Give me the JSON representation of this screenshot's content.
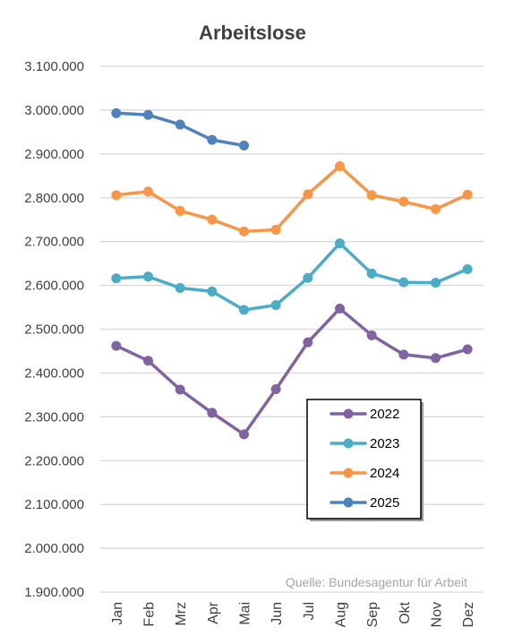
{
  "chart_data": {
    "type": "line",
    "title": "Arbeitslose",
    "xlabel": "",
    "ylabel": "",
    "categories": [
      "Jan",
      "Feb",
      "Mrz",
      "Apr",
      "Mai",
      "Jun",
      "Jul",
      "Aug",
      "Sep",
      "Okt",
      "Nov",
      "Dez"
    ],
    "ylim": [
      1900000,
      3100000
    ],
    "yticks": [
      {
        "value": 1900000,
        "label": "1.900.000"
      },
      {
        "value": 2000000,
        "label": "2.000.000"
      },
      {
        "value": 2100000,
        "label": "2.100.000"
      },
      {
        "value": 2200000,
        "label": "2.200.000"
      },
      {
        "value": 2300000,
        "label": "2.300.000"
      },
      {
        "value": 2400000,
        "label": "2.400.000"
      },
      {
        "value": 2500000,
        "label": "2.500.000"
      },
      {
        "value": 2600000,
        "label": "2.600.000"
      },
      {
        "value": 2700000,
        "label": "2.700.000"
      },
      {
        "value": 2800000,
        "label": "2.800.000"
      },
      {
        "value": 2900000,
        "label": "2.900.000"
      },
      {
        "value": 3000000,
        "label": "3.000.000"
      },
      {
        "value": 3100000,
        "label": "3.100.000"
      }
    ],
    "grid": true,
    "legend_position": "bottom-right",
    "series": [
      {
        "name": "2022",
        "color": "#8064a2",
        "values": [
          2462000,
          2428000,
          2362000,
          2309000,
          2260000,
          2363000,
          2470000,
          2547000,
          2486000,
          2442000,
          2434000,
          2454000
        ]
      },
      {
        "name": "2023",
        "color": "#4bacc6",
        "values": [
          2616000,
          2620000,
          2594000,
          2586000,
          2544000,
          2555000,
          2617000,
          2696000,
          2627000,
          2607000,
          2606000,
          2637000
        ]
      },
      {
        "name": "2024",
        "color": "#f79646",
        "values": [
          2806000,
          2814000,
          2770000,
          2750000,
          2723000,
          2727000,
          2808000,
          2872000,
          2806000,
          2791000,
          2774000,
          2807000
        ]
      },
      {
        "name": "2025",
        "color": "#4f81bd",
        "values": [
          2993000,
          2989000,
          2967000,
          2932000,
          2919000,
          null,
          null,
          null,
          null,
          null,
          null,
          null
        ]
      }
    ],
    "annotation": "Quelle: Bundesagentur für Arbeit"
  }
}
